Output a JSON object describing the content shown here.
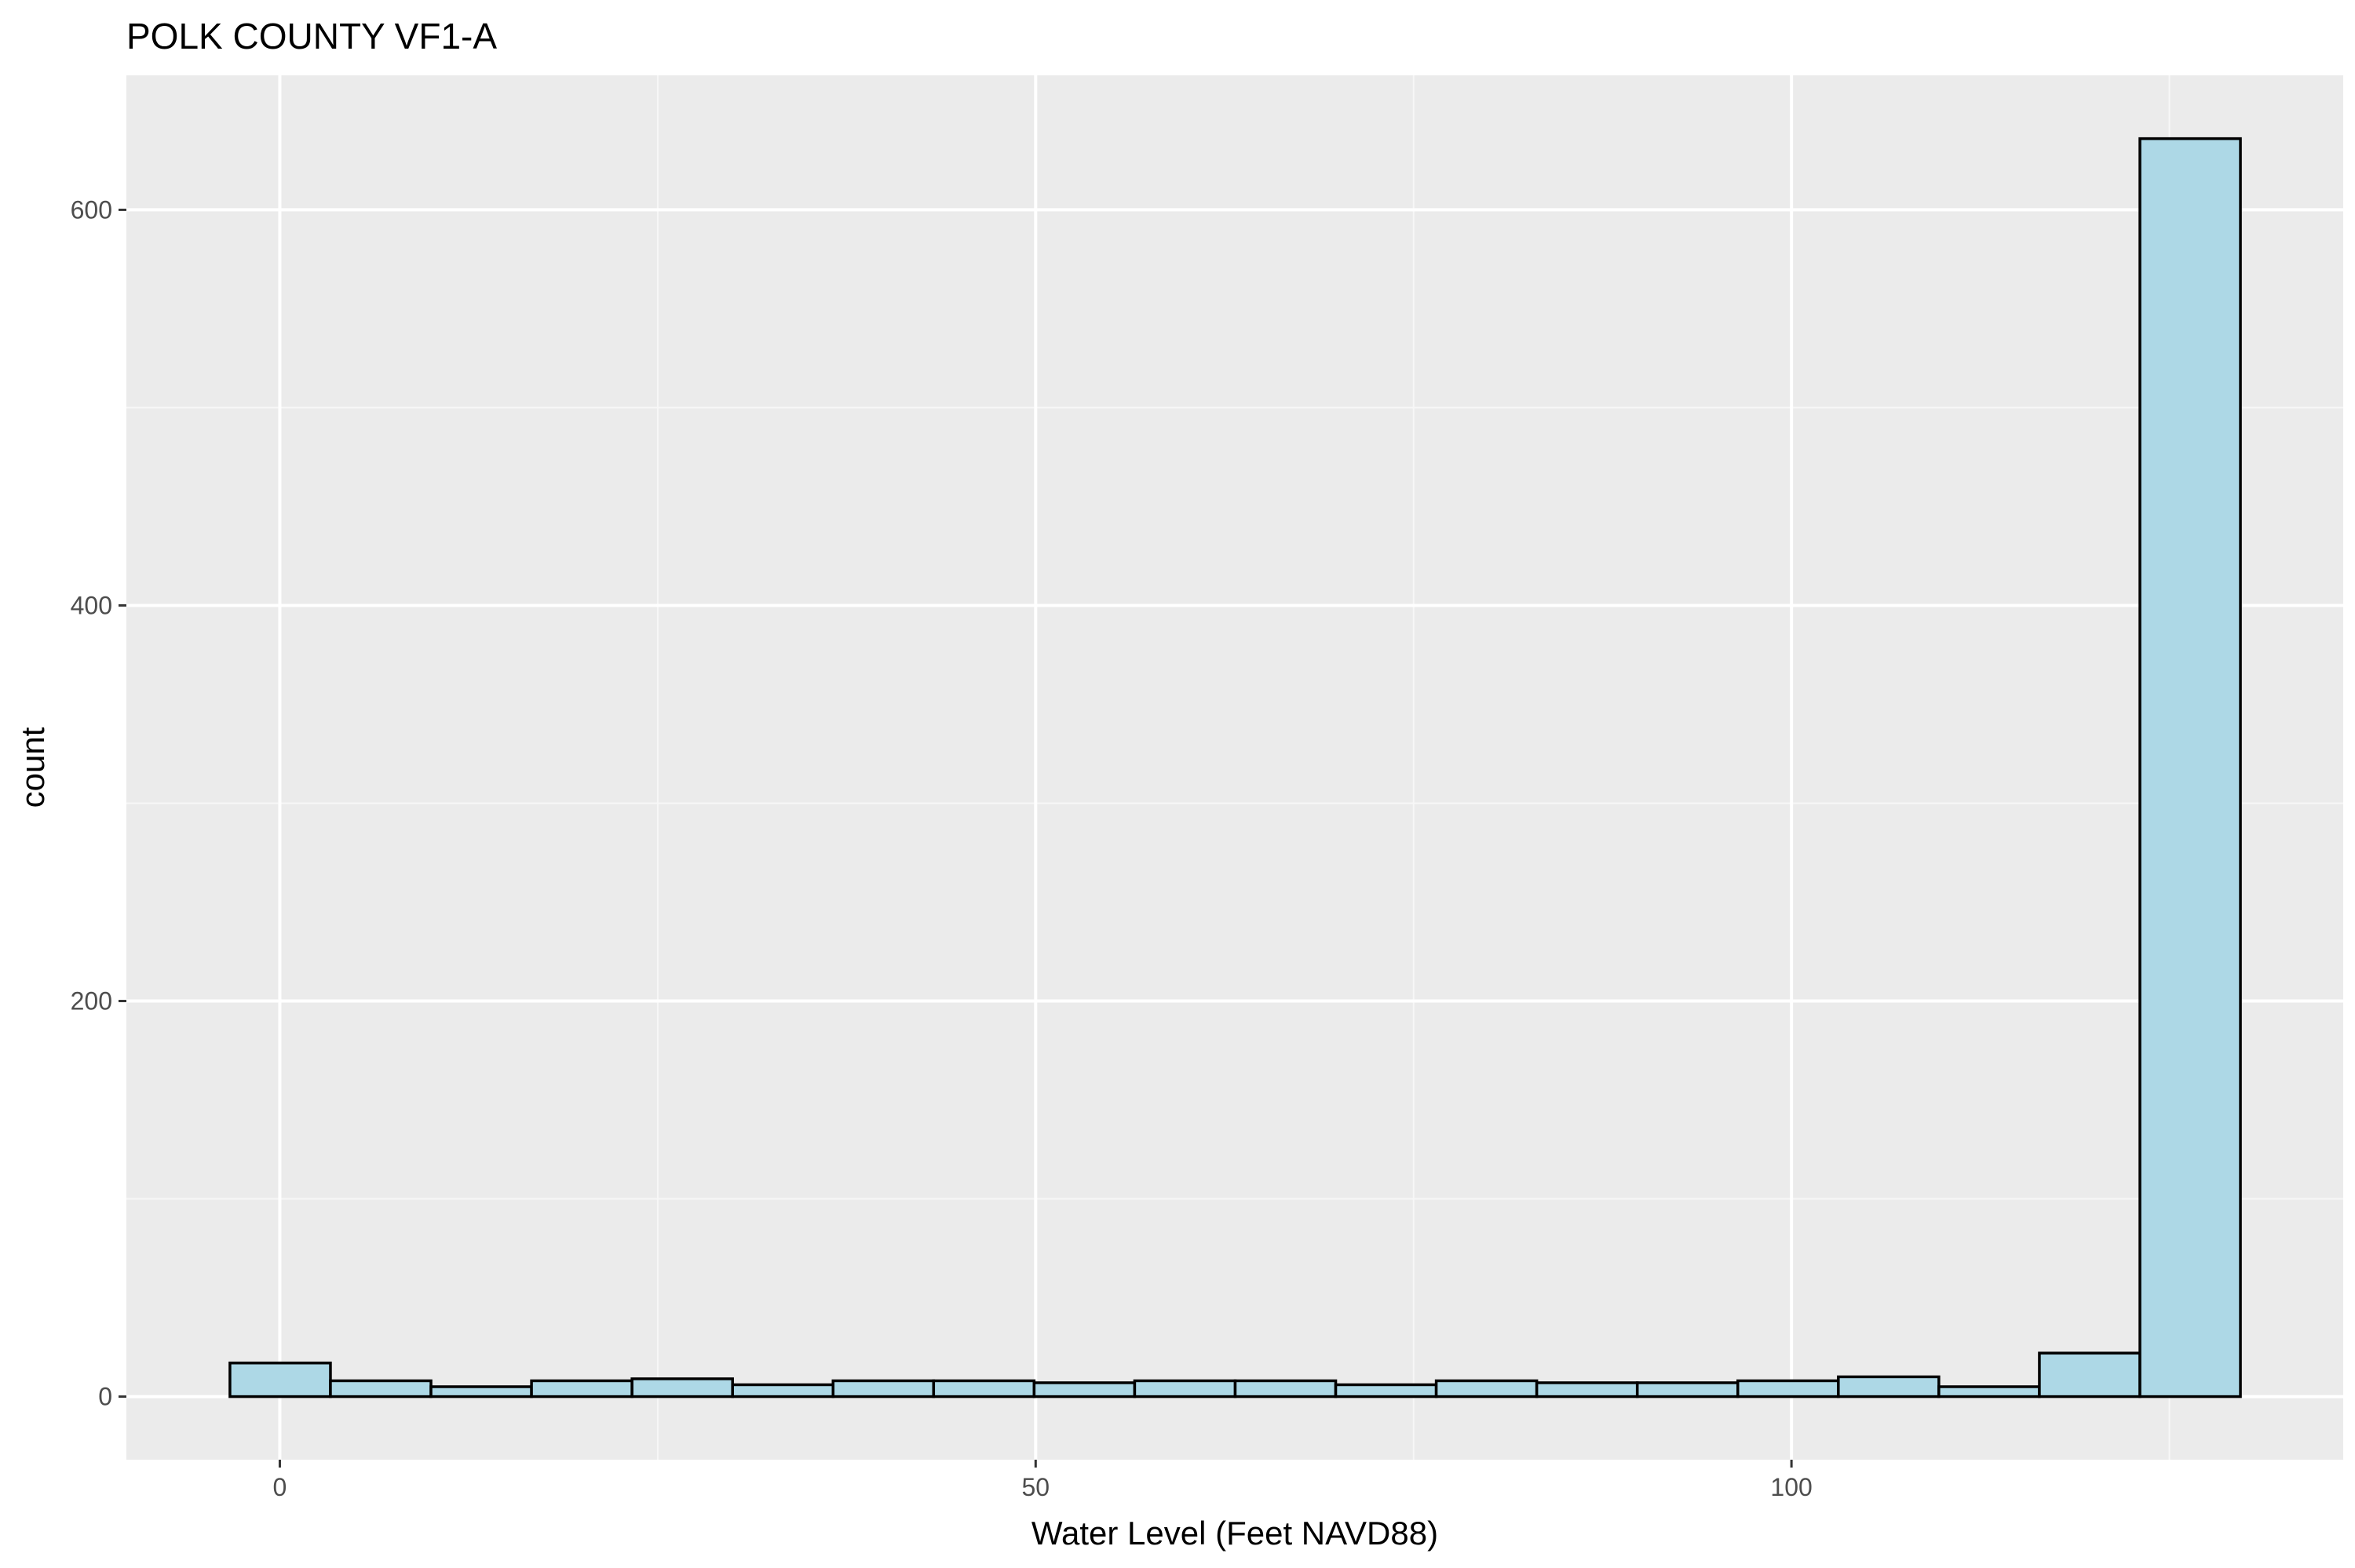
{
  "chart_data": {
    "type": "bar",
    "title": "POLK COUNTY VF1-A",
    "xlabel": "Water Level (Feet NAVD88)",
    "ylabel": "count",
    "xlim": [
      -10.15,
      136.5
    ],
    "ylim": [
      -31.9,
      668
    ],
    "x_ticks": [
      0,
      50,
      100
    ],
    "x_tick_labels": [
      "0",
      "50",
      "100"
    ],
    "y_ticks": [
      0,
      200,
      400,
      600
    ],
    "y_tick_labels": [
      "0",
      "200",
      "400",
      "600"
    ],
    "x_minor_ticks": [
      25,
      75,
      125
    ],
    "y_minor_ticks": [
      100,
      300,
      500
    ],
    "grid": true,
    "legend": "none",
    "bin_width": 6.65,
    "bins_start": [
      -3.3,
      3.35,
      10.0,
      16.65,
      23.3,
      29.95,
      36.6,
      43.25,
      49.9,
      56.55,
      63.2,
      69.85,
      76.5,
      83.15,
      89.8,
      96.45,
      103.1,
      109.75,
      116.4,
      123.05
    ],
    "values": [
      17,
      8,
      5,
      8,
      9,
      6,
      8,
      8,
      7,
      8,
      8,
      6,
      8,
      7,
      7,
      8,
      10,
      5,
      22,
      636
    ],
    "colors": {
      "bar_fill": "#add8e6",
      "bar_stroke": "#000000",
      "panel_bg": "#ebebeb",
      "grid_major": "#ffffff",
      "grid_minor": "#f7f7f7",
      "tick_color": "#333333",
      "tick_text": "#4d4d4d"
    }
  }
}
